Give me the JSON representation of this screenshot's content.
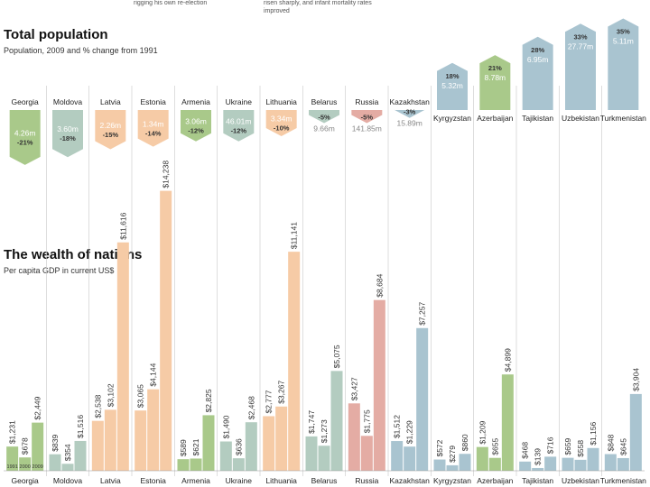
{
  "header_notes": {
    "left": "rigging his own re-election",
    "right_line1": "risen sharply, and infant mortality rates",
    "right_line2": "improved"
  },
  "sections": {
    "population_title": "Total population",
    "population_subtitle": "Population, 2009 and % change from 1991",
    "wealth_title": "The wealth of nations",
    "wealth_subtitle": "Per capita GDP in current US$"
  },
  "colors": {
    "Georgia": "#a9c98a",
    "Moldova": "#b3ccc0",
    "Latvia": "#f6cba6",
    "Estonia": "#f6cba6",
    "Armenia": "#a9c98a",
    "Ukraine": "#b3ccc0",
    "Lithuania": "#f6cba6",
    "Belarus": "#b3ccc0",
    "Russia": "#e4aca4",
    "Kazakhstan": "#a9c4d0",
    "Kyrgyzstan": "#a9c4d0",
    "Azerbaijan": "#a9c98a",
    "Tajikistan": "#a9c4d0",
    "Uzbekistan": "#a9c4d0",
    "Turkmenistan": "#a9c4d0"
  },
  "chart_data": [
    {
      "type": "bar",
      "title": "Total population",
      "subtitle": "Population, 2009 and % change from 1991",
      "categories": [
        "Georgia",
        "Moldova",
        "Latvia",
        "Estonia",
        "Armenia",
        "Ukraine",
        "Lithuania",
        "Belarus",
        "Russia",
        "Kazakhstan",
        "Kyrgyzstan",
        "Azerbaijan",
        "Tajikistan",
        "Uzbekistan",
        "Turkmenistan"
      ],
      "pct_change_1991": [
        -21,
        -18,
        -15,
        -14,
        -12,
        -12,
        -10,
        -5,
        -5,
        -3,
        18,
        21,
        28,
        33,
        35
      ],
      "pct_labels": [
        "-21%",
        "-18%",
        "-15%",
        "-14%",
        "-12%",
        "-12%",
        "-10%",
        "-5%",
        "-5%",
        "-3%",
        "18%",
        "21%",
        "28%",
        "33%",
        "35%"
      ],
      "population_2009_labels": [
        "4.26m",
        "3.60m",
        "2.26m",
        "1.34m",
        "3.06m",
        "46.01m",
        "3.34m",
        "9.66m",
        "141.85m",
        "15.89m",
        "5.32m",
        "8.78m",
        "6.95m",
        "27.77m",
        "5.11m"
      ]
    },
    {
      "type": "bar",
      "title": "The wealth of nations",
      "subtitle": "Per capita GDP in current US$",
      "years": [
        "1991",
        "2000",
        "2009"
      ],
      "categories": [
        "Georgia",
        "Moldova",
        "Latvia",
        "Estonia",
        "Armenia",
        "Ukraine",
        "Lithuania",
        "Belarus",
        "Russia",
        "Kazakhstan",
        "Kyrgyzstan",
        "Azerbaijan",
        "Tajikistan",
        "Uzbekistan",
        "Turkmenistan"
      ],
      "series": [
        {
          "name": "1991",
          "values": [
            1231,
            839,
            2538,
            3065,
            589,
            1490,
            2777,
            1747,
            3427,
            1512,
            572,
            1209,
            468,
            659,
            848
          ]
        },
        {
          "name": "2000",
          "values": [
            678,
            354,
            3102,
            4144,
            621,
            636,
            3267,
            1273,
            1775,
            1229,
            279,
            655,
            139,
            558,
            645
          ]
        },
        {
          "name": "2009",
          "values": [
            2449,
            1516,
            11616,
            14238,
            2825,
            2468,
            11141,
            5075,
            8684,
            7257,
            860,
            4899,
            716,
            1156,
            3904
          ]
        }
      ],
      "value_labels": [
        [
          "$1,231",
          "$678",
          "$2,449"
        ],
        [
          "$839",
          "$354",
          "$1,516"
        ],
        [
          "$2,538",
          "$3,102",
          "$11,616"
        ],
        [
          "$3,065",
          "$4,144",
          "$14,238"
        ],
        [
          "$589",
          "$621",
          "$2,825"
        ],
        [
          "$1,490",
          "$636",
          "$2,468"
        ],
        [
          "$2,777",
          "$3,267",
          "$11,141"
        ],
        [
          "$1,747",
          "$1,273",
          "$5,075"
        ],
        [
          "$3,427",
          "$1,775",
          "$8,684"
        ],
        [
          "$1,512",
          "$1,229",
          "$7,257"
        ],
        [
          "$572",
          "$279",
          "$860"
        ],
        [
          "$1,209",
          "$655",
          "$4,899"
        ],
        [
          "$468",
          "$139",
          "$716"
        ],
        [
          "$659",
          "$558",
          "$1,156"
        ],
        [
          "$848",
          "$645",
          "$3,904"
        ]
      ]
    }
  ]
}
